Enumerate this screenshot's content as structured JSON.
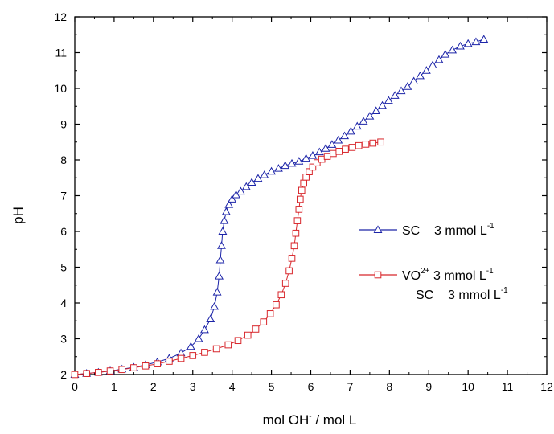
{
  "chart_data": {
    "type": "scatter",
    "xlabel": {
      "main": "mol OH",
      "sup": "-",
      "rest": " / mol L"
    },
    "ylabel": "pH",
    "xlim": [
      0,
      12
    ],
    "ylim": [
      2,
      12
    ],
    "xticks": [
      0,
      1,
      2,
      3,
      4,
      5,
      6,
      7,
      8,
      9,
      10,
      11,
      12
    ],
    "yticks": [
      2,
      3,
      4,
      5,
      6,
      7,
      8,
      9,
      10,
      11,
      12
    ],
    "grid": false,
    "legend_position": "right-center",
    "series": [
      {
        "name": "SC 3 mmol L-1",
        "legend": [
          {
            "parts": [
              {
                "t": "SC    3 mmol L"
              },
              {
                "t": "-1",
                "sup": true
              }
            ]
          }
        ],
        "marker": "triangle",
        "color": "#1c24a8",
        "x": [
          0.0,
          0.3,
          0.6,
          0.9,
          1.2,
          1.5,
          1.8,
          2.1,
          2.4,
          2.7,
          2.95,
          3.15,
          3.3,
          3.45,
          3.55,
          3.62,
          3.67,
          3.7,
          3.73,
          3.76,
          3.8,
          3.85,
          3.92,
          4.0,
          4.1,
          4.22,
          4.36,
          4.5,
          4.66,
          4.82,
          5.0,
          5.18,
          5.35,
          5.52,
          5.7,
          5.88,
          6.05,
          6.22,
          6.38,
          6.54,
          6.7,
          6.86,
          7.02,
          7.18,
          7.34,
          7.5,
          7.66,
          7.82,
          7.98,
          8.14,
          8.3,
          8.46,
          8.62,
          8.78,
          8.94,
          9.1,
          9.26,
          9.42,
          9.6,
          9.8,
          10.0,
          10.2,
          10.4
        ],
        "y": [
          2.0,
          2.03,
          2.06,
          2.1,
          2.15,
          2.2,
          2.27,
          2.35,
          2.45,
          2.6,
          2.78,
          3.0,
          3.25,
          3.55,
          3.9,
          4.3,
          4.75,
          5.2,
          5.6,
          6.0,
          6.3,
          6.55,
          6.75,
          6.9,
          7.02,
          7.12,
          7.25,
          7.37,
          7.48,
          7.58,
          7.68,
          7.76,
          7.84,
          7.9,
          7.96,
          8.04,
          8.12,
          8.22,
          8.32,
          8.43,
          8.55,
          8.67,
          8.8,
          8.94,
          9.08,
          9.22,
          9.37,
          9.52,
          9.66,
          9.8,
          9.93,
          10.05,
          10.2,
          10.35,
          10.5,
          10.65,
          10.8,
          10.95,
          11.07,
          11.18,
          11.25,
          11.3,
          11.37
        ]
      },
      {
        "name": "VO2+ 3 mmol L-1 SC 3 mmol L-1",
        "legend": [
          {
            "parts": [
              {
                "t": "VO"
              },
              {
                "t": "2+",
                "sup": true
              },
              {
                "t": " 3 mmol L"
              },
              {
                "t": "-1",
                "sup": true
              }
            ]
          },
          {
            "parts": [
              {
                "t": "SC    3 mmol L"
              },
              {
                "t": "-1",
                "sup": true
              }
            ]
          }
        ],
        "marker": "square",
        "color": "#d8262b",
        "x": [
          0.0,
          0.3,
          0.6,
          0.9,
          1.2,
          1.5,
          1.8,
          2.1,
          2.4,
          2.7,
          3.0,
          3.3,
          3.6,
          3.9,
          4.15,
          4.4,
          4.6,
          4.8,
          4.97,
          5.12,
          5.25,
          5.36,
          5.45,
          5.52,
          5.58,
          5.62,
          5.66,
          5.7,
          5.73,
          5.77,
          5.82,
          5.88,
          5.96,
          6.05,
          6.16,
          6.28,
          6.42,
          6.57,
          6.72,
          6.88,
          7.05,
          7.22,
          7.4,
          7.58,
          7.78
        ],
        "y": [
          2.0,
          2.03,
          2.06,
          2.1,
          2.14,
          2.19,
          2.24,
          2.3,
          2.37,
          2.45,
          2.53,
          2.62,
          2.72,
          2.83,
          2.95,
          3.1,
          3.27,
          3.47,
          3.7,
          3.95,
          4.23,
          4.55,
          4.9,
          5.25,
          5.6,
          5.95,
          6.3,
          6.62,
          6.9,
          7.15,
          7.35,
          7.52,
          7.67,
          7.8,
          7.92,
          8.02,
          8.1,
          8.18,
          8.24,
          8.3,
          8.35,
          8.4,
          8.44,
          8.47,
          8.5
        ]
      }
    ]
  }
}
